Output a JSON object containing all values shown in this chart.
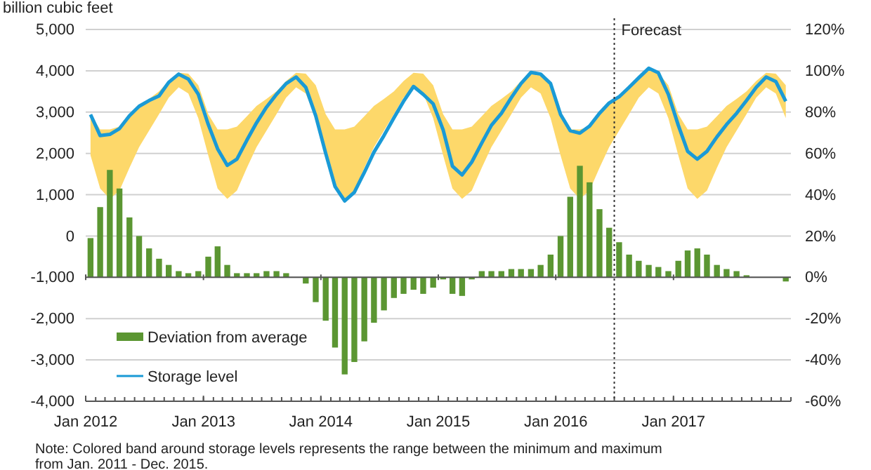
{
  "chart_data": {
    "type": "bar",
    "ylabel": "billion cubic feet",
    "x": [
      "2012-01-16",
      "2012-02-15",
      "2012-03-16",
      "2012-04-15",
      "2012-05-16",
      "2012-06-15",
      "2012-07-16",
      "2012-08-16",
      "2012-09-15",
      "2012-10-16",
      "2012-11-15",
      "2012-12-16",
      "2013-01-16",
      "2013-02-14",
      "2013-03-16",
      "2013-04-15",
      "2013-05-16",
      "2013-06-15",
      "2013-07-16",
      "2013-08-16",
      "2013-09-15",
      "2013-10-16",
      "2013-11-15",
      "2013-12-16",
      "2014-01-16",
      "2014-02-14",
      "2014-03-16",
      "2014-04-15",
      "2014-05-16",
      "2014-06-15",
      "2014-07-16",
      "2014-08-16",
      "2014-09-15",
      "2014-10-16",
      "2014-11-15",
      "2014-12-16",
      "2015-01-16",
      "2015-02-14",
      "2015-03-16",
      "2015-04-15",
      "2015-05-16",
      "2015-06-15",
      "2015-07-16",
      "2015-08-16",
      "2015-09-15",
      "2015-10-16",
      "2015-11-15",
      "2015-12-16",
      "2016-01-16",
      "2016-02-15",
      "2016-03-16",
      "2016-04-15",
      "2016-05-16",
      "2016-06-15",
      "2016-07-16",
      "2016-08-16",
      "2016-09-15",
      "2016-10-16",
      "2016-11-15",
      "2016-12-16",
      "2017-01-16",
      "2017-02-14",
      "2017-03-16",
      "2017-04-15",
      "2017-05-16",
      "2017-06-15",
      "2017-07-16",
      "2017-08-16",
      "2017-09-15",
      "2017-10-16",
      "2017-11-15",
      "2017-12-16"
    ],
    "series": [
      {
        "name": "Deviation from average",
        "axis": "y2",
        "color": "#5b9632",
        "values": [
          19,
          34,
          52,
          43,
          29,
          20,
          14,
          9,
          6,
          3,
          2,
          3,
          10,
          15,
          6,
          2,
          2,
          2,
          3,
          3,
          2,
          0,
          -3,
          -12,
          -21,
          -34,
          -47,
          -41,
          -31,
          -22,
          -16,
          -10,
          -8,
          -6,
          -8,
          -5,
          -1,
          -8,
          -9,
          -1,
          3,
          3,
          3,
          4,
          4,
          4,
          6,
          11,
          20,
          39,
          54,
          46,
          33,
          24,
          17,
          11,
          8,
          6,
          5,
          3,
          8,
          13,
          14,
          11,
          6,
          4,
          3,
          1,
          0,
          0,
          0,
          -2
        ]
      },
      {
        "name": "Storage level",
        "type": "line",
        "color": "#1a9ad6",
        "values": [
          2940,
          2430,
          2460,
          2600,
          2910,
          3140,
          3280,
          3390,
          3720,
          3920,
          3800,
          3430,
          2700,
          2110,
          1710,
          1860,
          2320,
          2740,
          3120,
          3430,
          3690,
          3850,
          3600,
          2910,
          2000,
          1200,
          850,
          1060,
          1540,
          2030,
          2430,
          2860,
          3260,
          3620,
          3430,
          3200,
          2570,
          1690,
          1480,
          1790,
          2250,
          2680,
          2970,
          3350,
          3690,
          3960,
          3920,
          3690,
          2940,
          2550,
          2490,
          2660,
          2970,
          3220,
          3370,
          3600,
          3830,
          4060,
          3950,
          3430,
          2680,
          2050,
          1860,
          2050,
          2400,
          2700,
          2970,
          3280,
          3600,
          3850,
          3740,
          3260
        ],
        "lower": [
          1950,
          1150,
          900,
          1100,
          1650,
          2150,
          2550,
          2950,
          3350,
          3600,
          3450,
          2850,
          1950,
          1150,
          900,
          1100,
          1650,
          2150,
          2550,
          2950,
          3350,
          3600,
          3450,
          2850,
          1950,
          1150,
          850,
          1050,
          1650,
          2150,
          2550,
          2950,
          3350,
          3600,
          3450,
          2850,
          1950,
          1150,
          900,
          1100,
          1650,
          2150,
          2550,
          2950,
          3350,
          3600,
          3450,
          2850,
          1950,
          1150,
          900,
          1100,
          1650,
          2150,
          2550,
          2950,
          3350,
          3600,
          3450,
          2850,
          1950,
          1150,
          900,
          1100,
          1650,
          2150,
          2550,
          2950,
          3350,
          3600,
          3450,
          2850
        ],
        "upper": [
          2950,
          2580,
          2580,
          2650,
          2900,
          3150,
          3320,
          3500,
          3750,
          3950,
          3930,
          3650,
          2950,
          2580,
          2580,
          2650,
          2900,
          3150,
          3320,
          3500,
          3750,
          3950,
          3930,
          3650,
          2950,
          2580,
          2580,
          2650,
          2900,
          3150,
          3320,
          3500,
          3750,
          3950,
          3930,
          3650,
          2950,
          2580,
          2580,
          2650,
          2900,
          3150,
          3320,
          3500,
          3750,
          3970,
          3930,
          3700,
          2950,
          2580,
          2580,
          2650,
          2970,
          3220,
          3370,
          3600,
          3830,
          4060,
          3950,
          3650,
          2950,
          2580,
          2580,
          2650,
          2900,
          3150,
          3320,
          3500,
          3750,
          3950,
          3930,
          3650
        ]
      }
    ],
    "ylim": [
      -4000,
      5000
    ],
    "yticks": [
      {
        "value": -4000,
        "label": "-4,000"
      },
      {
        "value": -3000,
        "label": "-3,000"
      },
      {
        "value": -2000,
        "label": "-2,000"
      },
      {
        "value": -1000,
        "label": "-1,000"
      },
      0,
      {
        "value": 1000,
        "label": "1,000"
      },
      {
        "value": 2000,
        "label": "2,000"
      },
      {
        "value": 3000,
        "label": "3,000"
      },
      {
        "value": 4000,
        "label": "4,000"
      },
      {
        "value": 5000,
        "label": "5,000"
      }
    ],
    "y2lim": [
      -60,
      120
    ],
    "y2ticks": [
      {
        "value": -60,
        "label": "-60%"
      },
      {
        "value": -40,
        "label": "-40%"
      },
      {
        "value": -20,
        "label": "-20%"
      },
      {
        "value": 0,
        "label": "0%"
      },
      {
        "value": 20,
        "label": "20%"
      },
      {
        "value": 40,
        "label": "40%"
      },
      {
        "value": 60,
        "label": "60%"
      },
      {
        "value": 80,
        "label": "80%"
      },
      {
        "value": 100,
        "label": "100%"
      },
      {
        "value": 120,
        "label": "120%"
      }
    ],
    "xlim": [
      "2012-01",
      "2018-01"
    ],
    "xticks": [
      {
        "value": "2012-01",
        "label": "Jan 2012"
      },
      {
        "value": "2013-01",
        "label": "Jan 2013"
      },
      {
        "value": "2014-01",
        "label": "Jan 2014"
      },
      {
        "value": "2015-01",
        "label": "Jan 2015"
      },
      {
        "value": "2016-01",
        "label": "Jan 2016"
      },
      {
        "value": "2017-01",
        "label": "Jan 2017"
      }
    ],
    "ref_lines": [
      {
        "axis": "x",
        "value": "2016-07",
        "label": "Forecast",
        "line_style": "dotted"
      }
    ],
    "grid": "y",
    "legend": "bottom left",
    "annotations": [
      "Note:  Colored band around storage levels represents the range between the minimum and maximum from Jan. 2011 - Dec. 2015."
    ]
  }
}
